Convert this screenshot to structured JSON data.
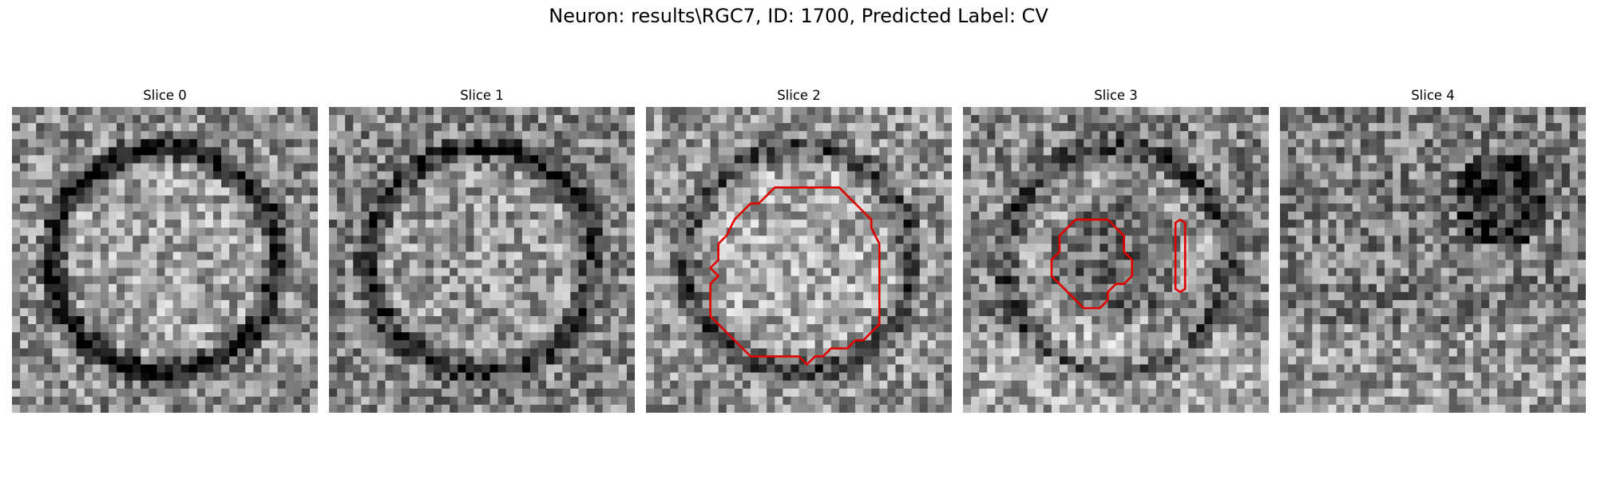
{
  "figure": {
    "title": "Neuron: results\\RGC7, ID: 1700, Predicted Label: CV"
  },
  "panels": [
    {
      "title": "Slice 0",
      "bright": 0.55,
      "ring": 0.58,
      "seed": 11
    },
    {
      "title": "Slice 1",
      "bright": 0.52,
      "ring": 0.42,
      "seed": 23
    },
    {
      "title": "Slice 2",
      "bright": 0.58,
      "ring": 0.35,
      "seed": 37,
      "contours": [
        [
          [
            22,
            10
          ],
          [
            24,
            10
          ],
          [
            25,
            11
          ],
          [
            27,
            13
          ],
          [
            28,
            14
          ],
          [
            28,
            15
          ],
          [
            29,
            17
          ],
          [
            29,
            27
          ],
          [
            28,
            28
          ],
          [
            27,
            29
          ],
          [
            26,
            29
          ],
          [
            25,
            30
          ],
          [
            23,
            30
          ],
          [
            22,
            31
          ],
          [
            21,
            31
          ],
          [
            20,
            32
          ],
          [
            19,
            31
          ],
          [
            16,
            31
          ],
          [
            13,
            31
          ],
          [
            11,
            29
          ],
          [
            10,
            28
          ],
          [
            9,
            27
          ],
          [
            8,
            26
          ],
          [
            8,
            24
          ],
          [
            8,
            22
          ],
          [
            9,
            21
          ],
          [
            8,
            20
          ],
          [
            9,
            19
          ],
          [
            9,
            17
          ],
          [
            10,
            16
          ],
          [
            11,
            14
          ],
          [
            12,
            13
          ],
          [
            13,
            12
          ],
          [
            14,
            12
          ],
          [
            15,
            11
          ],
          [
            16,
            10
          ],
          [
            22,
            10
          ]
        ]
      ]
    },
    {
      "title": "Slice 3",
      "bright": 0.52,
      "ring": 0.3,
      "seed": 51,
      "contours": [
        [
          [
            16,
            14
          ],
          [
            18,
            14
          ],
          [
            19,
            15
          ],
          [
            20,
            16
          ],
          [
            20,
            18
          ],
          [
            21,
            19
          ],
          [
            21,
            21
          ],
          [
            20,
            22
          ],
          [
            19,
            22
          ],
          [
            18,
            23
          ],
          [
            18,
            24
          ],
          [
            17,
            25
          ],
          [
            15,
            25
          ],
          [
            14,
            24
          ],
          [
            13,
            23
          ],
          [
            12,
            22
          ],
          [
            11,
            21
          ],
          [
            11,
            19
          ],
          [
            12,
            18
          ],
          [
            12,
            16
          ],
          [
            13,
            15
          ],
          [
            14,
            14
          ],
          [
            16,
            14
          ]
        ],
        [
          [
            27,
            14
          ],
          [
            27.6,
            14.4
          ],
          [
            27.6,
            22.6
          ],
          [
            27,
            23
          ],
          [
            26.4,
            22.6
          ],
          [
            26.4,
            14.4
          ],
          [
            27,
            14
          ]
        ]
      ]
    },
    {
      "title": "Slice 4",
      "bright": 0.5,
      "ring": 0.0,
      "seed": 67
    }
  ]
}
